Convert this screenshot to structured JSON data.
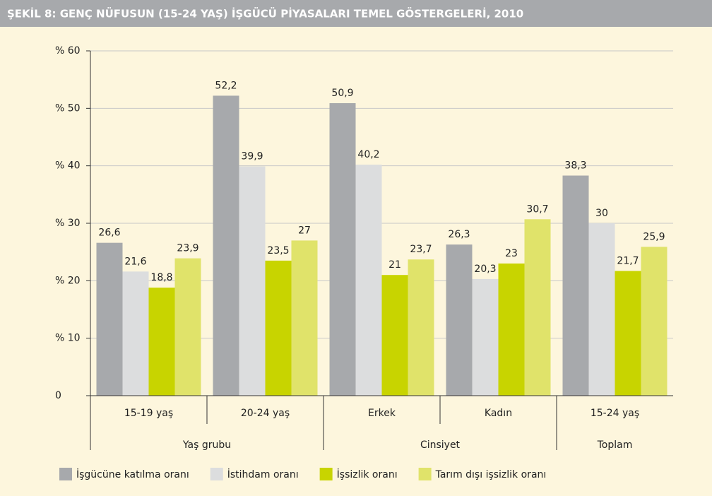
{
  "chart_data": {
    "type": "bar",
    "title": "ŞEKİL 8: GENÇ NÜFUSUN (15-24 YAŞ) İŞGÜCÜ PİYASALARI TEMEL  GÖSTERGELERİ, 2010",
    "categories": [
      "15-19 yaş",
      "20-24 yaş",
      "Erkek",
      "Kadın",
      "15-24 yaş"
    ],
    "category_groups": [
      {
        "label": "Yaş grubu",
        "size": 2
      },
      {
        "label": "Cinsiyet",
        "size": 2
      },
      {
        "label": "Toplam",
        "size": 1
      }
    ],
    "series": [
      {
        "name": "İşgücüne katılma oranı",
        "color": "#a7a9ac",
        "values": [
          26.6,
          52.2,
          50.9,
          26.3,
          38.3
        ],
        "value_labels": [
          "26,6",
          "52,2",
          "50,9",
          "26,3",
          "38,3"
        ]
      },
      {
        "name": "İstihdam oranı",
        "color": "#dcddde",
        "values": [
          21.6,
          39.9,
          40.2,
          20.3,
          30
        ],
        "value_labels": [
          "21,6",
          "39,9",
          "40,2",
          "20,3",
          "30"
        ]
      },
      {
        "name": "İşsizlik oranı",
        "color": "#c8d400",
        "values": [
          18.8,
          23.5,
          21,
          23,
          21.7
        ],
        "value_labels": [
          "18,8",
          "23,5",
          "21",
          "23",
          "21,7"
        ]
      },
      {
        "name": "Tarım dışı işsizlik oranı",
        "color": "#e0e36a",
        "values": [
          23.9,
          27,
          23.7,
          30.7,
          25.9
        ],
        "value_labels": [
          "23,9",
          "27",
          "23,7",
          "30,7",
          "25,9"
        ]
      }
    ],
    "ylim": [
      0,
      60
    ],
    "yticks": [
      0,
      {
        "value": 10,
        "label": "% 10"
      },
      {
        "value": 20,
        "label": "% 20"
      },
      {
        "value": 30,
        "label": "% 30"
      },
      {
        "value": 40,
        "label": "% 40"
      },
      {
        "value": 50,
        "label": "% 50"
      },
      {
        "value": 60,
        "label": "% 60"
      }
    ],
    "grid": true
  }
}
